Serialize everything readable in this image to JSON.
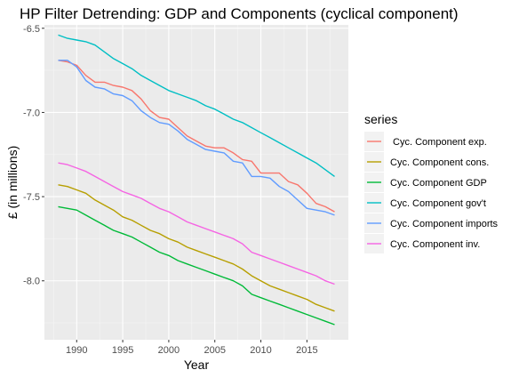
{
  "chart_data": {
    "type": "line",
    "title": "HP Filter Detrending: GDP and Components (cyclical component)",
    "xlabel": "Year",
    "ylabel": "£ (in millions)",
    "xlim": [
      1986.5,
      2019.5
    ],
    "ylim": [
      -8.35,
      -6.48
    ],
    "x_ticks": [
      1990,
      1995,
      2000,
      2005,
      2010,
      2015
    ],
    "y_ticks": [
      -6.5,
      -7.0,
      -7.5,
      -8.0
    ],
    "y_tick_labels": [
      "-6.5",
      "-7.0",
      "-7.5",
      "-8.0"
    ],
    "grid": true,
    "legend_title": "series",
    "legend_position": "right",
    "x": [
      1988,
      1989,
      1990,
      1991,
      1992,
      1993,
      1994,
      1995,
      1996,
      1997,
      1998,
      1999,
      2000,
      2001,
      2002,
      2003,
      2004,
      2005,
      2006,
      2007,
      2008,
      2009,
      2010,
      2011,
      2012,
      2013,
      2014,
      2015,
      2016,
      2017,
      2018
    ],
    "series": [
      {
        "name": " Cyc. Component exp.",
        "color": "#F8766D",
        "values": [
          -6.69,
          -6.7,
          -6.72,
          -6.78,
          -6.82,
          -6.82,
          -6.84,
          -6.85,
          -6.87,
          -6.92,
          -6.99,
          -7.03,
          -7.04,
          -7.09,
          -7.14,
          -7.17,
          -7.2,
          -7.21,
          -7.21,
          -7.24,
          -7.28,
          -7.29,
          -7.36,
          -7.36,
          -7.36,
          -7.41,
          -7.43,
          -7.48,
          -7.54,
          -7.56,
          -7.59
        ]
      },
      {
        "name": "Cyc. Component cons.",
        "color": "#B79F00",
        "values": [
          -7.43,
          -7.44,
          -7.46,
          -7.48,
          -7.52,
          -7.55,
          -7.58,
          -7.62,
          -7.64,
          -7.67,
          -7.7,
          -7.72,
          -7.75,
          -7.77,
          -7.8,
          -7.82,
          -7.84,
          -7.86,
          -7.88,
          -7.9,
          -7.93,
          -7.97,
          -8.0,
          -8.03,
          -8.05,
          -8.07,
          -8.09,
          -8.11,
          -8.14,
          -8.16,
          -8.18
        ]
      },
      {
        "name": "Cyc. Component GDP",
        "color": "#00BA38",
        "values": [
          -7.56,
          -7.57,
          -7.58,
          -7.61,
          -7.64,
          -7.67,
          -7.7,
          -7.72,
          -7.74,
          -7.77,
          -7.8,
          -7.83,
          -7.85,
          -7.88,
          -7.9,
          -7.92,
          -7.94,
          -7.96,
          -7.98,
          -8.0,
          -8.03,
          -8.08,
          -8.1,
          -8.12,
          -8.14,
          -8.16,
          -8.18,
          -8.2,
          -8.22,
          -8.24,
          -8.26
        ]
      },
      {
        "name": "Cyc. Component gov't",
        "color": "#00BFC4",
        "values": [
          -6.54,
          -6.56,
          -6.57,
          -6.58,
          -6.6,
          -6.64,
          -6.68,
          -6.71,
          -6.74,
          -6.78,
          -6.81,
          -6.84,
          -6.87,
          -6.89,
          -6.91,
          -6.93,
          -6.96,
          -6.98,
          -7.01,
          -7.04,
          -7.06,
          -7.09,
          -7.12,
          -7.15,
          -7.18,
          -7.21,
          -7.24,
          -7.27,
          -7.3,
          -7.34,
          -7.38
        ]
      },
      {
        "name": "Cyc. Component imports",
        "color": "#619CFF",
        "values": [
          -6.69,
          -6.69,
          -6.73,
          -6.81,
          -6.85,
          -6.86,
          -6.89,
          -6.9,
          -6.93,
          -6.99,
          -7.03,
          -7.06,
          -7.07,
          -7.11,
          -7.16,
          -7.19,
          -7.22,
          -7.23,
          -7.24,
          -7.29,
          -7.3,
          -7.38,
          -7.38,
          -7.39,
          -7.44,
          -7.47,
          -7.52,
          -7.57,
          -7.58,
          -7.59,
          -7.61
        ]
      },
      {
        "name": "Cyc. Component inv.",
        "color": "#F564E3",
        "values": [
          -7.3,
          -7.31,
          -7.33,
          -7.35,
          -7.38,
          -7.41,
          -7.44,
          -7.47,
          -7.49,
          -7.51,
          -7.54,
          -7.57,
          -7.59,
          -7.62,
          -7.65,
          -7.67,
          -7.69,
          -7.71,
          -7.73,
          -7.75,
          -7.78,
          -7.83,
          -7.85,
          -7.87,
          -7.89,
          -7.91,
          -7.93,
          -7.95,
          -7.97,
          -8.0,
          -8.02
        ]
      }
    ]
  }
}
